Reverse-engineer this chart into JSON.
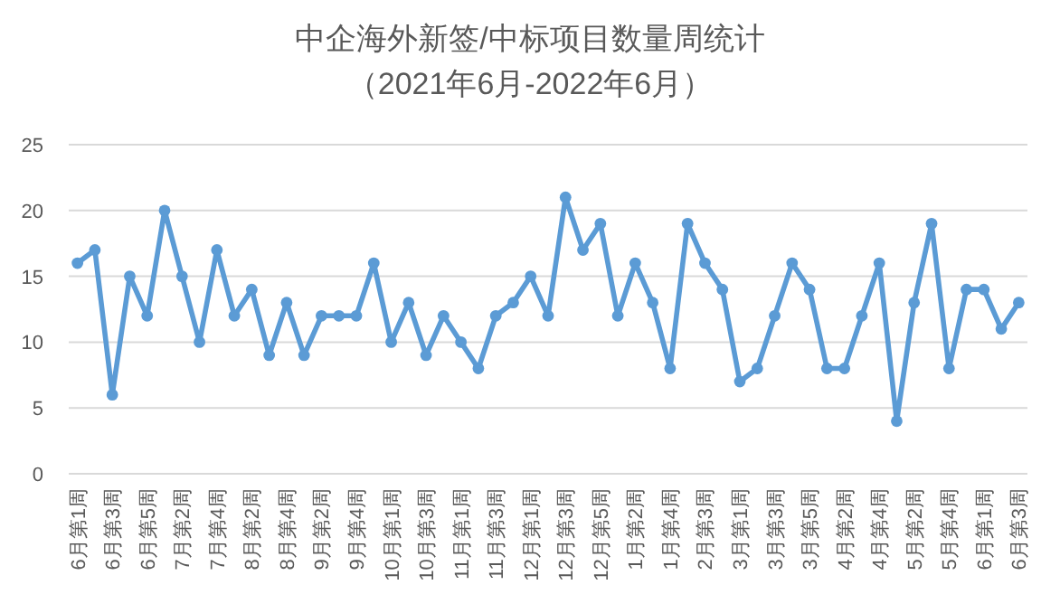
{
  "chart_data": {
    "type": "line",
    "title": "中企海外新签/中标项目数量周统计",
    "subtitle": "（2021年6月-2022年6月）",
    "categories": [
      "6月第1周",
      null,
      "6月第3周",
      null,
      "6月第5周",
      null,
      "7月第2周",
      null,
      "7月第4周",
      null,
      "8月第2周",
      null,
      "8月第4周",
      null,
      "9月第2周",
      null,
      "9月第4周",
      null,
      "10月第1周",
      null,
      "10月第3周",
      null,
      "11月第1周",
      null,
      "11月第3周",
      null,
      "12月第1周",
      null,
      "12月第3周",
      null,
      "12月第5周",
      null,
      "1月第2周",
      null,
      "1月第4周",
      null,
      "2月第3周",
      null,
      "3月第1周",
      null,
      "3月第3周",
      null,
      "3月第5周",
      null,
      "4月第2周",
      null,
      "4月第4周",
      null,
      "5月第2周",
      null,
      "5月第4周",
      null,
      "6月第1周",
      null,
      "6月第3周"
    ],
    "series": [
      {
        "color": "#5b9bd5",
        "values": [
          16,
          17,
          6,
          15,
          12,
          20,
          15,
          10,
          17,
          12,
          14,
          9,
          13,
          9,
          12,
          12,
          12,
          16,
          10,
          13,
          9,
          12,
          10,
          8,
          12,
          13,
          15,
          12,
          21,
          17,
          19,
          12,
          16,
          13,
          8,
          19,
          16,
          14,
          7,
          8,
          12,
          16,
          14,
          8,
          8,
          12,
          16,
          4,
          13,
          19,
          8,
          14,
          14,
          11,
          13
        ]
      }
    ],
    "ylim": [
      0,
      25
    ],
    "yticks": [
      0,
      5,
      10,
      15,
      20,
      25
    ],
    "grid": "y",
    "marker": "circle",
    "line_style": "solid"
  }
}
